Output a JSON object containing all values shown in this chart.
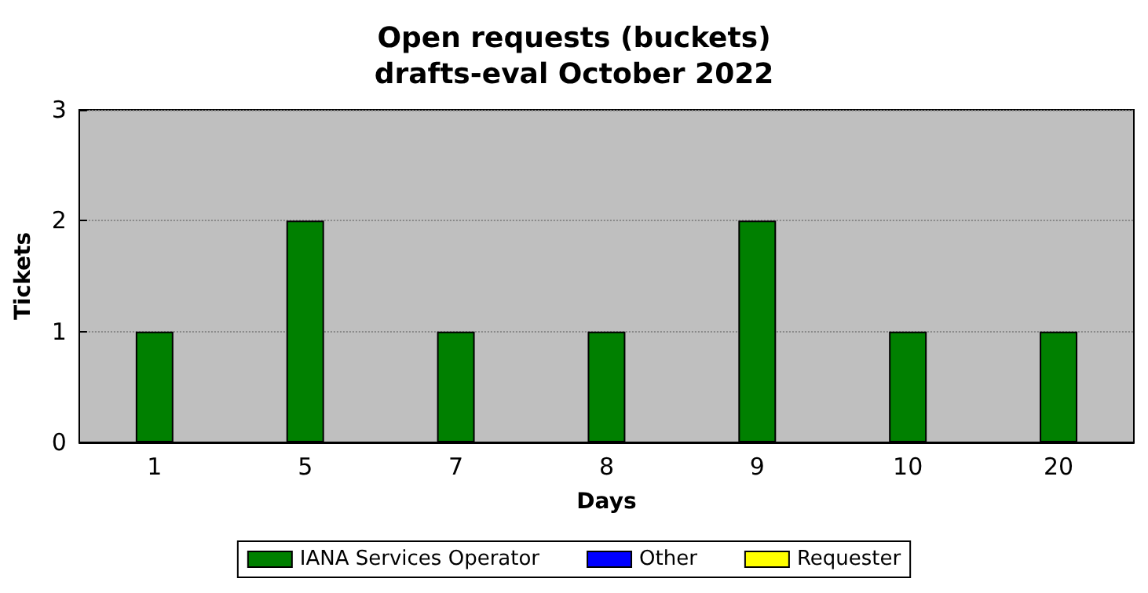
{
  "chart_data": {
    "type": "bar",
    "title": "Open requests (buckets)\ndrafts-eval October 2022",
    "xlabel": "Days",
    "ylabel": "Tickets",
    "categories": [
      "1",
      "5",
      "7",
      "8",
      "9",
      "10",
      "20"
    ],
    "series": [
      {
        "name": "IANA Services Operator",
        "color": "#008000",
        "values": [
          1,
          2,
          1,
          1,
          2,
          1,
          1
        ]
      },
      {
        "name": "Other",
        "color": "#0000ff",
        "values": [
          0,
          0,
          0,
          0,
          0,
          0,
          0
        ]
      },
      {
        "name": "Requester",
        "color": "#ffff00",
        "values": [
          0,
          0,
          0,
          0,
          0,
          0,
          0
        ]
      }
    ],
    "stacked": true,
    "ylim": [
      0,
      3
    ],
    "yticks": [
      0,
      1,
      2,
      3
    ],
    "grid": "y",
    "legend": "bottom"
  }
}
